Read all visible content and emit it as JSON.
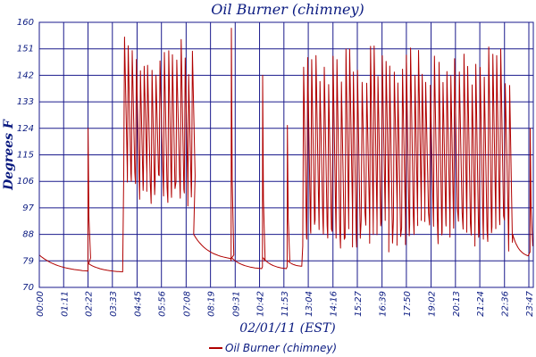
{
  "chart_data": {
    "type": "line",
    "title": "Oil Burner (chimney)",
    "xlabel": "02/01/11 (EST)",
    "ylabel": "Degrees F",
    "ylim": [
      70,
      160
    ],
    "xlim": [
      0,
      24
    ],
    "grid": true,
    "legend_position": "bottom-center",
    "colors": {
      "series": "#b00000",
      "grid": "#1a1a8c",
      "text": "#0a1a80"
    },
    "y_ticks": [
      "70",
      "79",
      "88",
      "97",
      "106",
      "115",
      "124",
      "133",
      "142",
      "151",
      "160"
    ],
    "x_tick_labels": [
      "00:00",
      "01:11",
      "02:22",
      "03:33",
      "04:45",
      "05:56",
      "07:08",
      "08:19",
      "09:31",
      "10:42",
      "11:53",
      "13:04",
      "14:16",
      "15:27",
      "16:39",
      "17:50",
      "19:02",
      "20:13",
      "21:24",
      "22:36",
      "23:47"
    ],
    "x_tick_values": [
      0,
      1.183,
      2.367,
      3.55,
      4.75,
      5.933,
      7.133,
      8.317,
      9.517,
      10.7,
      11.883,
      13.067,
      14.267,
      15.45,
      16.65,
      17.833,
      19.033,
      20.217,
      21.4,
      22.6,
      23.783
    ],
    "series": [
      {
        "name": "Oil Burner (chimney)",
        "segments": [
          {
            "type": "decay",
            "start": 0,
            "end": 2.36,
            "from": 81,
            "to": 75
          },
          {
            "type": "spike",
            "at": 2.37,
            "peak": 124,
            "base": 78
          },
          {
            "type": "decay",
            "start": 2.4,
            "end": 4.05,
            "from": 78,
            "to": 75
          },
          {
            "type": "cycling",
            "start": 4.1,
            "end": 7.5,
            "low": 103,
            "high": 155,
            "period": 0.19
          },
          {
            "type": "decay",
            "start": 7.5,
            "end": 9.3,
            "from": 88,
            "to": 79
          },
          {
            "type": "spike",
            "at": 9.33,
            "peak": 158,
            "base": 79
          },
          {
            "type": "decay",
            "start": 9.35,
            "end": 10.8,
            "from": 80,
            "to": 76
          },
          {
            "type": "spike",
            "at": 10.85,
            "peak": 142,
            "base": 77
          },
          {
            "type": "decay",
            "start": 10.88,
            "end": 12.0,
            "from": 80,
            "to": 76
          },
          {
            "type": "spike",
            "at": 12.05,
            "peak": 125,
            "base": 77
          },
          {
            "type": "decay",
            "start": 12.08,
            "end": 12.75,
            "from": 79,
            "to": 77
          },
          {
            "type": "cycling",
            "start": 12.8,
            "end": 23.0,
            "low": 88,
            "high": 152,
            "period": 0.2
          },
          {
            "type": "decay",
            "start": 23.0,
            "end": 23.75,
            "from": 88,
            "to": 80
          },
          {
            "type": "spike",
            "at": 23.85,
            "peak": 124,
            "base": 82
          }
        ]
      }
    ]
  }
}
